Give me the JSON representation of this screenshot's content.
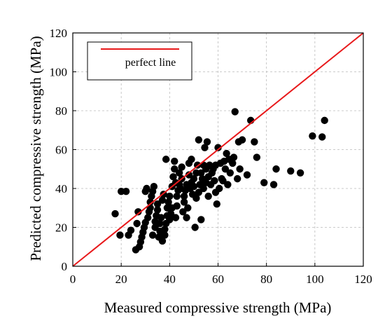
{
  "chart_data": {
    "type": "scatter",
    "xlabel": "Measured compressive strength (MPa)",
    "ylabel": "Predicted compressive strength (MPa)",
    "xlim": [
      0,
      120
    ],
    "ylim": [
      0,
      120
    ],
    "xticks": [
      "0",
      "20",
      "40",
      "60",
      "80",
      "100",
      "120"
    ],
    "yticks": [
      "0",
      "20",
      "40",
      "60",
      "80",
      "100",
      "120"
    ],
    "grid": true,
    "legend": {
      "position": "top-left",
      "entries": [
        {
          "label": "perfect line",
          "color": "#e8191b"
        }
      ]
    },
    "colors": {
      "points": "#000000",
      "perfect_line": "#e8191b",
      "grid": "#bbbbbb"
    },
    "perfect_line": {
      "x": [
        0,
        120
      ],
      "y": [
        0,
        120
      ]
    },
    "points": [
      [
        17.5,
        27
      ],
      [
        19.5,
        16
      ],
      [
        20,
        38.5
      ],
      [
        22,
        38.5
      ],
      [
        23,
        16
      ],
      [
        24,
        18.5
      ],
      [
        26,
        8.5
      ],
      [
        26.5,
        22
      ],
      [
        27,
        28
      ],
      [
        27.5,
        10
      ],
      [
        28,
        12.5
      ],
      [
        28.5,
        15
      ],
      [
        29,
        17.5
      ],
      [
        29.5,
        20
      ],
      [
        30,
        22.5
      ],
      [
        30,
        38.5
      ],
      [
        30.5,
        40
      ],
      [
        31,
        25
      ],
      [
        31.5,
        28
      ],
      [
        32,
        30
      ],
      [
        32,
        33
      ],
      [
        32.5,
        36
      ],
      [
        33,
        16
      ],
      [
        33,
        38.5
      ],
      [
        33.5,
        41
      ],
      [
        34,
        20
      ],
      [
        34,
        23
      ],
      [
        34.5,
        26
      ],
      [
        35,
        29
      ],
      [
        35,
        32
      ],
      [
        35.5,
        15
      ],
      [
        36,
        18
      ],
      [
        36,
        22
      ],
      [
        36.5,
        25
      ],
      [
        37,
        13
      ],
      [
        37,
        34
      ],
      [
        37.5,
        37
      ],
      [
        38,
        16
      ],
      [
        38,
        19
      ],
      [
        38.5,
        22
      ],
      [
        38.5,
        55
      ],
      [
        39,
        26
      ],
      [
        39,
        30
      ],
      [
        39.5,
        33
      ],
      [
        40,
        36
      ],
      [
        40,
        24
      ],
      [
        40.5,
        27
      ],
      [
        41,
        30
      ],
      [
        41,
        41
      ],
      [
        41.5,
        46
      ],
      [
        42,
        50
      ],
      [
        42,
        54
      ],
      [
        42.5,
        43
      ],
      [
        42.5,
        25
      ],
      [
        43,
        31
      ],
      [
        43,
        36
      ],
      [
        43.5,
        39
      ],
      [
        44,
        42
      ],
      [
        44,
        48
      ],
      [
        44.5,
        40
      ],
      [
        45,
        45
      ],
      [
        45,
        51
      ],
      [
        45.5,
        28
      ],
      [
        46,
        33
      ],
      [
        46,
        36
      ],
      [
        46.5,
        39
      ],
      [
        47,
        42
      ],
      [
        47,
        25
      ],
      [
        47.5,
        30
      ],
      [
        48,
        47
      ],
      [
        48,
        53
      ],
      [
        48.5,
        40
      ],
      [
        49,
        43
      ],
      [
        49,
        55
      ],
      [
        49.5,
        37
      ],
      [
        50,
        41
      ],
      [
        50,
        45
      ],
      [
        50.5,
        20
      ],
      [
        51,
        48
      ],
      [
        51,
        35
      ],
      [
        51.5,
        52
      ],
      [
        52,
        38
      ],
      [
        52,
        65
      ],
      [
        52.5,
        42
      ],
      [
        53,
        24
      ],
      [
        53,
        48
      ],
      [
        53.5,
        45
      ],
      [
        54,
        40
      ],
      [
        54,
        52
      ],
      [
        54.5,
        61
      ],
      [
        55,
        50
      ],
      [
        55,
        43
      ],
      [
        55.5,
        64
      ],
      [
        56,
        46
      ],
      [
        56,
        36
      ],
      [
        56.5,
        52
      ],
      [
        57,
        42
      ],
      [
        57.5,
        48
      ],
      [
        58,
        50
      ],
      [
        58.5,
        44
      ],
      [
        59,
        38
      ],
      [
        59,
        52
      ],
      [
        59.5,
        32
      ],
      [
        60,
        61
      ],
      [
        60.5,
        40
      ],
      [
        61,
        53
      ],
      [
        61.5,
        45
      ],
      [
        62,
        44
      ],
      [
        62.5,
        54
      ],
      [
        63,
        50
      ],
      [
        63.5,
        58
      ],
      [
        64,
        42
      ],
      [
        64.5,
        55
      ],
      [
        65,
        48
      ],
      [
        66,
        53
      ],
      [
        66.5,
        56
      ],
      [
        67,
        79.5
      ],
      [
        68,
        45
      ],
      [
        68.5,
        64
      ],
      [
        69,
        50
      ],
      [
        70,
        65
      ],
      [
        72,
        47
      ],
      [
        73.5,
        75
      ],
      [
        75,
        64
      ],
      [
        76,
        56
      ],
      [
        79,
        43
      ],
      [
        83,
        42
      ],
      [
        84,
        50
      ],
      [
        90,
        49
      ],
      [
        94,
        48
      ],
      [
        99,
        67
      ],
      [
        103,
        66.5
      ],
      [
        104,
        75
      ]
    ]
  }
}
